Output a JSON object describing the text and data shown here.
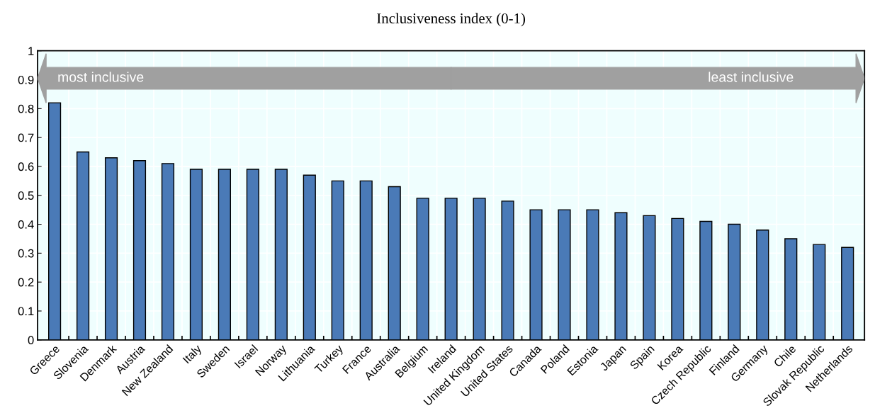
{
  "chart_data": {
    "type": "bar",
    "title": "Inclusiveness index (0-1)",
    "categories": [
      "Greece",
      "Slovenia",
      "Denmark",
      "Austria",
      "New Zealand",
      "Italy",
      "Sweden",
      "Israel",
      "Norway",
      "Lithuania",
      "Turkey",
      "France",
      "Australia",
      "Belgium",
      "Ireland",
      "United Kingdom",
      "United States",
      "Canada",
      "Poland",
      "Estonia",
      "Japan",
      "Spain",
      "Korea",
      "Czech Republic",
      "Finland",
      "Germany",
      "Chile",
      "Slovak Republic",
      "Netherlands"
    ],
    "values": [
      0.82,
      0.65,
      0.63,
      0.62,
      0.61,
      0.59,
      0.59,
      0.59,
      0.59,
      0.57,
      0.55,
      0.55,
      0.53,
      0.49,
      0.49,
      0.49,
      0.48,
      0.45,
      0.45,
      0.45,
      0.44,
      0.43,
      0.42,
      0.41,
      0.4,
      0.38,
      0.35,
      0.33,
      0.32
    ],
    "color": "#4a7ab7",
    "ylim": [
      0,
      1
    ],
    "yticks": [
      0,
      0.1,
      0.2,
      0.3,
      0.4,
      0.5,
      0.6,
      0.7,
      0.8,
      0.9,
      1
    ],
    "grid": true,
    "annotations": [
      "most inclusive",
      "least inclusive"
    ]
  }
}
